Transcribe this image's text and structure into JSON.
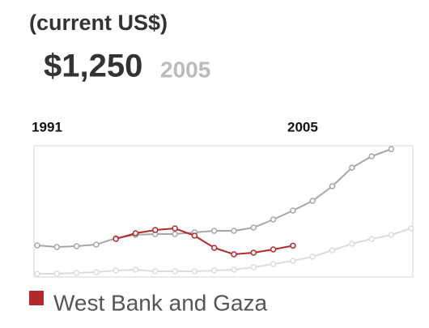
{
  "chart_data": {
    "type": "line",
    "title": "(current US$)",
    "headline": {
      "value_label": "$1,250",
      "year": "2005"
    },
    "categories": [
      "1991",
      null,
      null,
      null,
      null,
      null,
      null,
      null,
      null,
      null,
      null,
      null,
      null,
      "2005",
      null,
      null,
      null,
      null,
      null,
      null
    ],
    "ylim": [
      90,
      4950
    ],
    "series": [
      {
        "color": "#a6a6a6",
        "values": [
          1260,
          1200,
          1230,
          1290,
          1530,
          1650,
          1680,
          1680,
          1740,
          1800,
          1800,
          1920,
          2220,
          2550,
          2910,
          3450,
          4140,
          4560,
          4830,
          null
        ]
      },
      {
        "color": "#dcdcdc",
        "values": [
          210,
          210,
          240,
          270,
          330,
          360,
          300,
          300,
          300,
          330,
          360,
          450,
          570,
          690,
          840,
          1080,
          1320,
          1500,
          1650,
          1890
        ]
      },
      {
        "name": "West Bank and Gaza",
        "color": "#b3282d",
        "values": [
          null,
          null,
          null,
          null,
          1500,
          1710,
          1830,
          1890,
          1620,
          1170,
          930,
          990,
          1110,
          1250,
          null,
          null,
          null,
          null,
          null,
          null
        ]
      }
    ]
  }
}
